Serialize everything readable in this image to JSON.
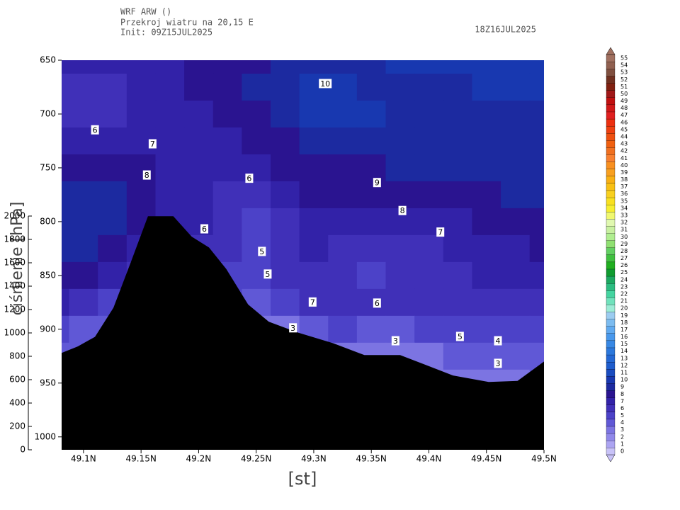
{
  "chart_data": {
    "type": "contour",
    "title": "WRF ARW ()",
    "subtitle": "Przekroj wiatru na 20,15 E",
    "init": "Init: 09Z15JUL2025",
    "valid_time": "18Z16JUL2025",
    "x_label": "[st]",
    "y_label": "ciśnienie [hPa]",
    "xlim": [
      49.081,
      49.5
    ],
    "ylim": [
      650,
      1012
    ],
    "xticks": [
      {
        "value": 49.1,
        "label": "49.1N"
      },
      {
        "value": 49.15,
        "label": "49.15N"
      },
      {
        "value": 49.2,
        "label": "49.2N"
      },
      {
        "value": 49.25,
        "label": "49.25N"
      },
      {
        "value": 49.3,
        "label": "49.3N"
      },
      {
        "value": 49.35,
        "label": "49.35N"
      },
      {
        "value": 49.4,
        "label": "49.4N"
      },
      {
        "value": 49.45,
        "label": "49.45N"
      },
      {
        "value": 49.5,
        "label": "49.5N"
      }
    ],
    "yticks": [
      650,
      700,
      750,
      800,
      850,
      900,
      950,
      1000
    ],
    "y2lim": [
      0,
      2000
    ],
    "y2ticks": [
      0,
      200,
      400,
      600,
      800,
      1000,
      1200,
      1400,
      1600,
      1800,
      2000
    ],
    "field": {
      "x": [
        49.075,
        49.1,
        49.125,
        49.15,
        49.175,
        49.2,
        49.225,
        49.25,
        49.275,
        49.3,
        49.325,
        49.35,
        49.375,
        49.4,
        49.425,
        49.45,
        49.475,
        49.5
      ],
      "pressure": [
        650,
        675,
        700,
        725,
        750,
        775,
        800,
        825,
        850,
        875,
        900,
        925,
        950
      ],
      "values": [
        [
          7.5,
          7.5,
          7.5,
          7.5,
          7.5,
          8.5,
          8.5,
          8.5,
          9.5,
          9.5,
          9.5,
          9.5,
          10.5,
          10.5,
          10.5,
          10.5,
          10.5,
          10.5
        ],
        [
          6.5,
          6.5,
          6.5,
          7.5,
          7.5,
          8.5,
          8.5,
          9.5,
          9.5,
          10.5,
          10.5,
          9.5,
          9.5,
          9.5,
          9.5,
          10.5,
          10.5,
          10.5
        ],
        [
          6.5,
          6.5,
          6.5,
          7.5,
          7.5,
          7.5,
          8.5,
          8.5,
          9.5,
          10.5,
          10.5,
          10.5,
          9.5,
          9.5,
          9.5,
          9.5,
          9.5,
          9.5
        ],
        [
          7.5,
          7.5,
          7.5,
          7.5,
          7.5,
          7.5,
          7.5,
          8.5,
          8.5,
          9.5,
          9.5,
          9.5,
          9.5,
          9.5,
          9.5,
          9.5,
          9.5,
          9.5
        ],
        [
          8.5,
          8.5,
          8.5,
          8.5,
          7.5,
          7.5,
          7.5,
          7.5,
          8.5,
          8.5,
          8.5,
          8.5,
          9.5,
          9.5,
          9.5,
          9.5,
          9.5,
          9.5
        ],
        [
          9.5,
          9.5,
          9.5,
          8.5,
          7.5,
          7.5,
          6.5,
          6.5,
          7.5,
          8.5,
          8.5,
          8.5,
          8.5,
          8.5,
          8.5,
          8.5,
          9.5,
          9.5
        ],
        [
          9.5,
          9.5,
          9.5,
          8.5,
          7.5,
          7.5,
          6.5,
          5.5,
          6.5,
          7.5,
          7.5,
          7.5,
          7.5,
          7.5,
          7.5,
          8.5,
          8.5,
          8.5
        ],
        [
          9.5,
          9.5,
          8.5,
          7.5,
          7,
          6.5,
          6.5,
          5.5,
          6.5,
          7.5,
          6.5,
          6.5,
          6.5,
          6.5,
          7.5,
          7.5,
          7.5,
          8.5
        ],
        [
          8.5,
          8.5,
          7.5,
          6.5,
          6,
          6,
          5.5,
          5.5,
          6.5,
          6.5,
          6.5,
          5.5,
          6.5,
          6.5,
          6.5,
          7.5,
          7.5,
          7.5
        ],
        [
          7.5,
          6.5,
          5.5,
          5,
          5,
          5,
          5,
          4.5,
          5.5,
          6.5,
          6.5,
          6.5,
          6.5,
          6.5,
          6.5,
          6.5,
          6.5,
          6.5
        ],
        [
          5.5,
          4.5,
          4.5,
          4.5,
          4,
          4,
          4,
          3.5,
          3.5,
          4.5,
          5.5,
          4.5,
          4.5,
          5.5,
          5.5,
          5.5,
          5.5,
          5.5
        ],
        [
          4.5,
          4,
          4,
          4,
          4,
          4,
          4,
          3.5,
          3.5,
          4.5,
          3.5,
          3.5,
          3.5,
          3.5,
          4.5,
          4.5,
          4.5,
          4.5
        ],
        [
          3.5,
          3.5,
          3.5,
          3.5,
          3.5,
          3.5,
          3.5,
          3.5,
          3.5,
          3.5,
          3.5,
          3.5,
          3.5,
          3.5,
          3.5,
          3.5,
          3.5,
          4.5
        ]
      ]
    },
    "contour_labels": [
      {
        "x": 49.31,
        "pressure": 672,
        "value": 10
      },
      {
        "x": 49.11,
        "pressure": 715,
        "value": 6
      },
      {
        "x": 49.16,
        "pressure": 728,
        "value": 7
      },
      {
        "x": 49.155,
        "pressure": 757,
        "value": 8
      },
      {
        "x": 49.244,
        "pressure": 760,
        "value": 6
      },
      {
        "x": 49.355,
        "pressure": 764,
        "value": 9
      },
      {
        "x": 49.377,
        "pressure": 790,
        "value": 8
      },
      {
        "x": 49.205,
        "pressure": 807,
        "value": 6
      },
      {
        "x": 49.41,
        "pressure": 810,
        "value": 7
      },
      {
        "x": 49.255,
        "pressure": 828,
        "value": 5
      },
      {
        "x": 49.26,
        "pressure": 849,
        "value": 5
      },
      {
        "x": 49.299,
        "pressure": 875,
        "value": 7
      },
      {
        "x": 49.355,
        "pressure": 876,
        "value": 6
      },
      {
        "x": 49.282,
        "pressure": 899,
        "value": 3
      },
      {
        "x": 49.371,
        "pressure": 911,
        "value": 3
      },
      {
        "x": 49.427,
        "pressure": 907,
        "value": 5
      },
      {
        "x": 49.46,
        "pressure": 911,
        "value": 4
      },
      {
        "x": 49.46,
        "pressure": 932,
        "value": 3
      }
    ],
    "terrain": {
      "color": "#000000",
      "x": [
        49.081,
        49.095,
        49.11,
        49.126,
        49.141,
        49.156,
        49.178,
        49.194,
        49.209,
        49.224,
        49.243,
        49.261,
        49.286,
        49.317,
        49.344,
        49.375,
        49.397,
        49.421,
        49.452,
        49.477,
        49.5
      ],
      "pressure": [
        922,
        916,
        907,
        880,
        838,
        795,
        795,
        814,
        824,
        844,
        877,
        893,
        903,
        913,
        924,
        924,
        933,
        943,
        949,
        948,
        930
      ]
    },
    "colorbar": {
      "levels": [
        0,
        1,
        2,
        3,
        4,
        5,
        6,
        7,
        8,
        9,
        10,
        11,
        12,
        13,
        14,
        15,
        16,
        17,
        18,
        19,
        20,
        21,
        22,
        23,
        24,
        25,
        26,
        27,
        28,
        29,
        30,
        31,
        32,
        33,
        34,
        35,
        36,
        37,
        38,
        39,
        40,
        41,
        42,
        43,
        44,
        45,
        46,
        47,
        48,
        49,
        50,
        51,
        52,
        53,
        54,
        55
      ],
      "colors": [
        "#c8c2f8",
        "#aca4f2",
        "#9088ea",
        "#7c74e2",
        "#6058d6",
        "#4c42c8",
        "#4030b8",
        "#3222a8",
        "#2a1490",
        "#1c2aa0",
        "#1838b0",
        "#1a4cc0",
        "#1e5ccc",
        "#2468d4",
        "#2c78dc",
        "#3888e4",
        "#4898ec",
        "#60aaf0",
        "#7cbcf0",
        "#9cccf0",
        "#9cecd6",
        "#70e2bc",
        "#44d4a0",
        "#2cbc80",
        "#1ca860",
        "#109c30",
        "#20ae20",
        "#40c040",
        "#62d062",
        "#90e072",
        "#b0ee90",
        "#c8f0a0",
        "#e0f8b0",
        "#f0f870",
        "#f6ee30",
        "#f8e020",
        "#f8d020",
        "#f8c014",
        "#f8b014",
        "#f8a020",
        "#f89020",
        "#f88030",
        "#f07020",
        "#f06010",
        "#ee5010",
        "#ee4010",
        "#ec3010",
        "#e02020",
        "#d01818",
        "#c01010",
        "#a01818",
        "#802010",
        "#703020",
        "#805040",
        "#906050",
        "#a07060"
      ]
    }
  }
}
